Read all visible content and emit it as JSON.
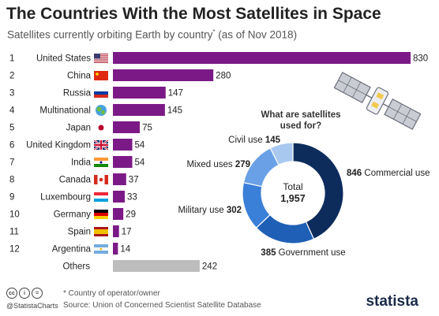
{
  "header": {
    "title": "The Countries With the Most Satellites in Space",
    "subtitle": "Satellites currently orbiting Earth by country",
    "subtitle_mark": "*",
    "subtitle_tail": "(as of Nov 2018)"
  },
  "footer": {
    "note": "* Country of operator/owner",
    "source": "Source: Union of Concerned Scientist Satellite Database",
    "handle": "@StatistaCharts",
    "brand": "statista",
    "license_icons": [
      "cc",
      "i",
      "="
    ]
  },
  "colors": {
    "bar": "#7b1a86",
    "others_bar": "#bdbdbd",
    "commercial": "#0d2c5c",
    "government": "#1f60b6",
    "military": "#3a7fd8",
    "mixed": "#6aa1e6",
    "civil": "#a9c8f0"
  },
  "chart_data": [
    {
      "type": "bar",
      "orientation": "horizontal",
      "categories": [
        "United States",
        "China",
        "Russia",
        "Multinational",
        "Japan",
        "United Kingdom",
        "India",
        "Canada",
        "Luxembourg",
        "Germany",
        "Spain",
        "Argentina",
        "Others"
      ],
      "ranks": [
        "1",
        "2",
        "3",
        "4",
        "5",
        "6",
        "7",
        "8",
        "9",
        "10",
        "11",
        "12",
        ""
      ],
      "flags": [
        "us",
        "cn",
        "ru",
        "globe",
        "jp",
        "gb",
        "in",
        "ca",
        "lu",
        "de",
        "es",
        "ar",
        ""
      ],
      "values": [
        830,
        280,
        147,
        145,
        75,
        54,
        54,
        37,
        33,
        29,
        17,
        14,
        242
      ],
      "xlim": [
        0,
        830
      ]
    },
    {
      "type": "pie",
      "style": "donut",
      "title": "What are satellites used for?",
      "center_label": "Total",
      "center_value": "1,957",
      "labels": [
        "Commercial use",
        "Government use",
        "Military use",
        "Mixed uses",
        "Civil use"
      ],
      "values": [
        846,
        385,
        302,
        279,
        145
      ]
    }
  ]
}
